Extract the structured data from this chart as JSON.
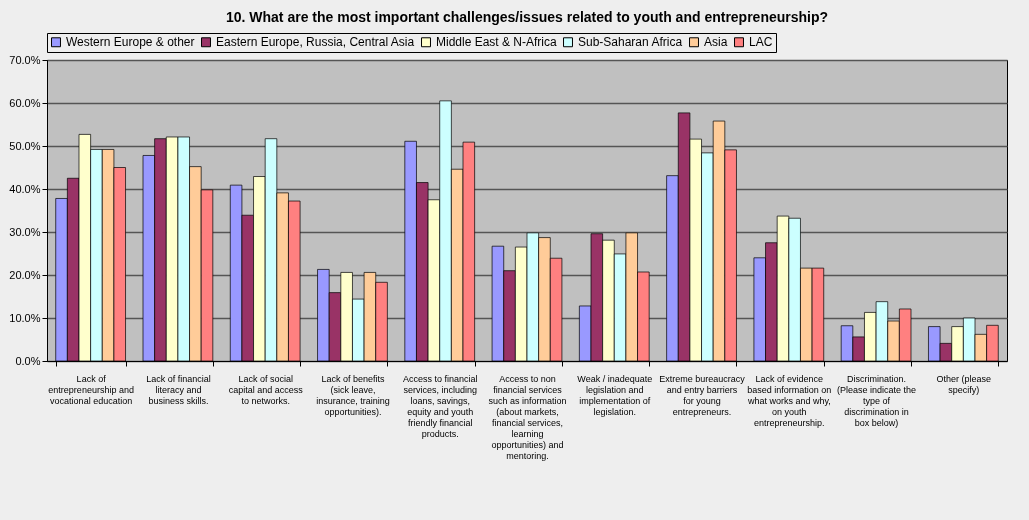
{
  "chart_data": {
    "type": "bar",
    "title": "10. What are the most important challenges/issues related to youth and entrepreneurship?",
    "categories": [
      "Lack of entrepreneurship and vocational education",
      "Lack of financial literacy and business skills.",
      "Lack of social capital and access to networks.",
      "Lack of benefits (sick leave, insurance, training opportunities).",
      "Access to financial services, including loans, savings, equity and youth friendly financial products.",
      "Access to non financial services such as information (about markets, financial services, learning opportunities) and mentoring.",
      "Weak / inadequate legislation and implementation of legislation.",
      "Extreme bureaucracy and entry barriers for young entrepreneurs.",
      "Lack of evidence based information on what works and why, on youth entrepreneurship.",
      "Discrimination. (Please indicate the type of discrimination in box below)",
      "Other (please specify)"
    ],
    "series": [
      {
        "name": "Western Europe & other",
        "color": "#9999ff",
        "values": [
          37.8,
          47.8,
          40.9,
          21.3,
          51.1,
          26.7,
          12.8,
          43.1,
          24.0,
          8.2,
          8.0
        ]
      },
      {
        "name": "Eastern Europe, Russia, Central Asia",
        "color": "#993366",
        "values": [
          42.5,
          51.7,
          33.9,
          15.9,
          41.5,
          21.0,
          29.6,
          57.7,
          27.5,
          5.6,
          4.1
        ]
      },
      {
        "name": "Middle East & N-Africa",
        "color": "#ffffcc",
        "values": [
          52.7,
          52.1,
          42.9,
          20.6,
          37.5,
          26.5,
          28.1,
          51.6,
          33.7,
          11.3,
          8.0
        ]
      },
      {
        "name": "Sub-Saharan Africa",
        "color": "#ccffff",
        "values": [
          49.2,
          52.1,
          51.7,
          14.4,
          60.5,
          29.8,
          24.9,
          48.4,
          33.2,
          13.8,
          10.0
        ]
      },
      {
        "name": "Asia",
        "color": "#ffcc99",
        "values": [
          49.2,
          45.2,
          39.1,
          20.6,
          44.6,
          28.7,
          29.8,
          55.8,
          21.6,
          9.3,
          6.2
        ]
      },
      {
        "name": "LAC",
        "color": "#ff8080",
        "values": [
          45.0,
          39.8,
          37.2,
          18.3,
          50.9,
          23.9,
          20.7,
          49.1,
          21.6,
          12.1,
          8.3
        ]
      }
    ],
    "ylim": [
      0,
      70
    ],
    "yticks": [
      {
        "value": 0,
        "label": "0.0%"
      },
      {
        "value": 10,
        "label": "10.0%"
      },
      {
        "value": 20,
        "label": "20.0%"
      },
      {
        "value": 30,
        "label": "30.0%"
      },
      {
        "value": 40,
        "label": "40.0%"
      },
      {
        "value": 50,
        "label": "50.0%"
      },
      {
        "value": 60,
        "label": "60.0%"
      },
      {
        "value": 70,
        "label": "70.0%"
      }
    ],
    "grid": "y",
    "legend": "top"
  }
}
